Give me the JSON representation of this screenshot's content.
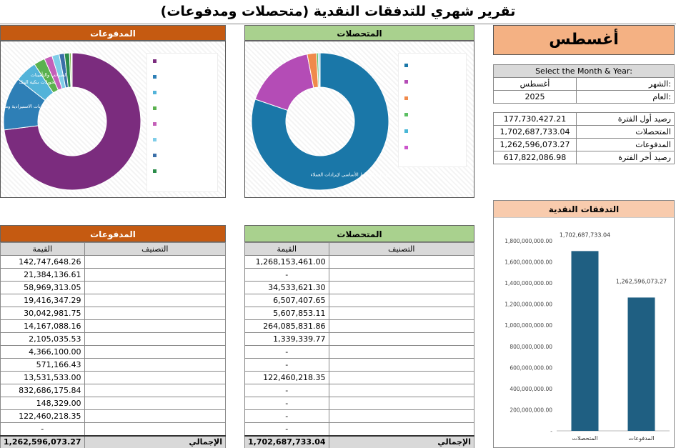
{
  "page_title": "تقرير شهري للتدفقات النقدية (متحصلات ومدفوعات)",
  "month_display": "أغسطس",
  "selector": {
    "heading": "Select the Month & Year:",
    "month_label": "الشهر:",
    "month_value": "أغسطس",
    "year_label": "العام:",
    "year_value": "2025"
  },
  "summary": [
    {
      "label": "رصيد أول الفترة",
      "value": "177,730,427.21"
    },
    {
      "label": "المتحصلات",
      "value": "1,702,687,733.04"
    },
    {
      "label": "المدفوعات",
      "value": "1,262,596,073.27"
    },
    {
      "label": "رصيد أخر الفترة",
      "value": "617,822,086.98"
    }
  ],
  "payments_header": "المدفوعات",
  "collections_header": "المتحصلات",
  "col_value": "القيمة",
  "col_category": "التصنيف",
  "total_label": "الإجمالي",
  "payments_values": [
    "142,747,648.26",
    "21,384,136.61",
    "58,969,313.05",
    "19,416,347.29",
    "30,042,981.75",
    "14,167,088.16",
    "2,105,035.53",
    "4,366,100.00",
    "571,166.43",
    "13,531,533.00",
    "832,686,175.84",
    "148,329.00",
    "122,460,218.35",
    "-"
  ],
  "payments_total": "1,262,596,073.27",
  "collections_values": [
    "1,268,153,461.00",
    "-",
    "34,533,621.30",
    "6,507,407.65",
    "5,607,853.11",
    "264,085,831.86",
    "1,339,339.77",
    "-",
    "-",
    "122,460,218.35",
    "-",
    "-",
    "-",
    "-"
  ],
  "collections_total": "1,702,687,733.04",
  "pie_labels": {
    "pay_a": "المشتريات الاستيرادية ومصروفاتها",
    "pay_b": "تحويلات بنكية البنك",
    "pay_c": "الضرائب والتأمينات",
    "col_a": "إيرادات النشاط الأساسي لإيرادات العملاء"
  },
  "colors": {
    "payments": "#c55a11",
    "collections": "#a9d18e",
    "month": "#f4b183",
    "bar": "#1f5f82"
  },
  "chart_data": [
    {
      "type": "pie",
      "header": "المدفوعات",
      "values": [
        832686175.84,
        142747648.26,
        58969313.05,
        30042981.75,
        21384136.61,
        19416347.29,
        14167088.16,
        13531533.0,
        4366100.0,
        2105035.53,
        571166.43,
        148329.0
      ],
      "colors": [
        "#7b2c7e",
        "#2e7fb6",
        "#53b3d9",
        "#5bb14f",
        "#c45fb8",
        "#7fcde8",
        "#3a6fa8",
        "#2b8c4a",
        "#7ab648",
        "#e07a3a",
        "#68a8d6",
        "#d35d8e"
      ]
    },
    {
      "type": "pie",
      "header": "المتحصلات",
      "values": [
        1268153461.0,
        264085831.86,
        34533621.3,
        6507407.65,
        5607853.11,
        1339339.77
      ],
      "colors": [
        "#1a77a8",
        "#b44cb6",
        "#f08a4b",
        "#5bbf62",
        "#49b7d6",
        "#cc55cc"
      ]
    },
    {
      "type": "bar",
      "title": "التدفقات النقدية",
      "categories": [
        "المتحصلات",
        "المدفوعات"
      ],
      "values": [
        1702687733.04,
        1262596073.27
      ],
      "value_labels": [
        "1,702,687,733.04",
        "1,262,596,073.27"
      ],
      "ylim": [
        0,
        1800000000
      ],
      "yticks": [
        0,
        200000000,
        400000000,
        600000000,
        800000000,
        1000000000,
        1200000000,
        1400000000,
        1600000000,
        1800000000
      ],
      "ytick_labels": [
        "-",
        "200,000,000.00",
        "400,000,000.00",
        "600,000,000.00",
        "800,000,000.00",
        "1,000,000,000.00",
        "1,200,000,000.00",
        "1,400,000,000.00",
        "1,600,000,000.00",
        "1,800,000,000.00"
      ]
    }
  ]
}
